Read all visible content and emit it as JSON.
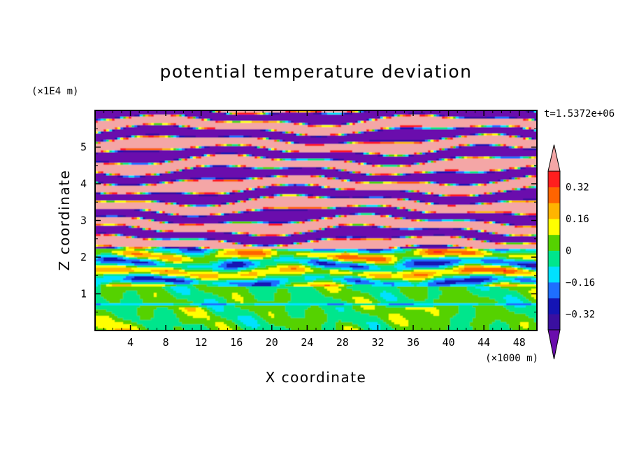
{
  "chart_data": {
    "type": "heatmap",
    "title": "potential temperature deviation",
    "xlabel": "X coordinate",
    "ylabel": "Z coordinate",
    "x_unit": "(×1000 m)",
    "y_unit": "(×1E4 m)",
    "time_label": "t=1.5372e+06",
    "xlim": [
      0,
      50
    ],
    "ylim": [
      0,
      6
    ],
    "x_ticks": [
      "4",
      "8",
      "12",
      "16",
      "20",
      "24",
      "28",
      "32",
      "36",
      "40",
      "44",
      "48"
    ],
    "x_tick_values": [
      4,
      8,
      12,
      16,
      20,
      24,
      28,
      32,
      36,
      40,
      44,
      48
    ],
    "y_ticks": [
      "1",
      "2",
      "3",
      "4",
      "5"
    ],
    "y_tick_values": [
      1,
      2,
      3,
      4,
      5
    ],
    "colorbar": {
      "levels": [
        -0.4,
        -0.32,
        -0.24,
        -0.16,
        -0.08,
        0,
        0.08,
        0.16,
        0.24,
        0.32,
        0.4
      ],
      "tick_labels": [
        "0.32",
        "0.16",
        "0",
        "−0.16",
        "−0.32"
      ],
      "tick_values": [
        0.32,
        0.16,
        0,
        -0.16,
        -0.32
      ],
      "colors": [
        "#6a0dad",
        "#3a0fa0",
        "#1414b4",
        "#1e6eff",
        "#00e1ff",
        "#00e68c",
        "#55d200",
        "#ffff00",
        "#ffb400",
        "#ff6400",
        "#ff1e1e",
        "#f4a6a6"
      ],
      "extend": "both"
    },
    "description_levels": {
      "z_0_to_1_2": "mostly green and cyan with scattered orange/red/yellow spots near z<0.6",
      "z_1_2_to_2_2": "mixed green, yellow, orange, blue bands",
      "z_2_2_to_6": "alternating purple and pink horizontal streaks with thin multicolour edges"
    }
  }
}
